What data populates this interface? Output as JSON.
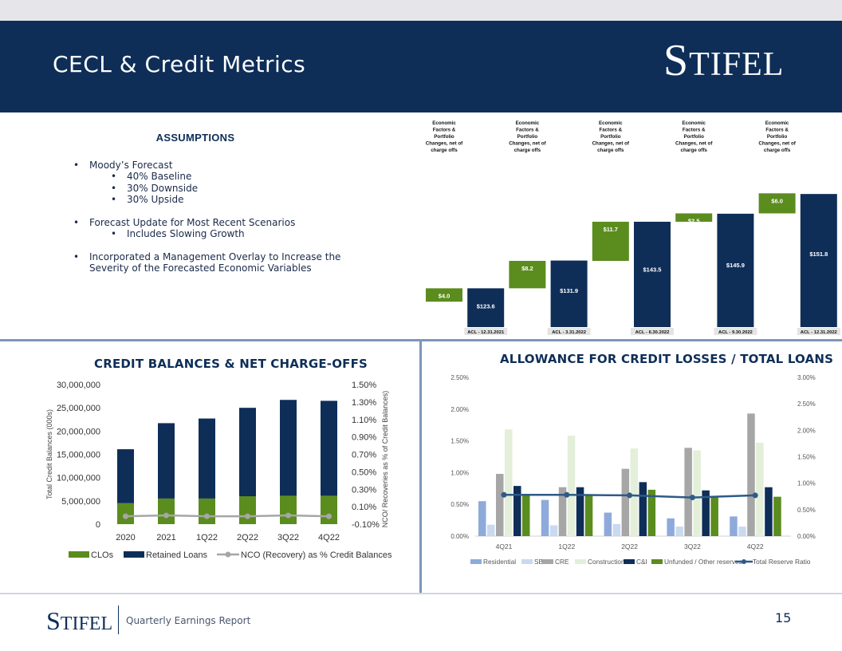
{
  "header": {
    "title": "CECL & Credit Metrics",
    "logo_first": "S",
    "logo_rest": "TIFEL"
  },
  "assumptions": {
    "heading": "ASSUMPTIONS",
    "b1": "Moody’s Forecast",
    "b1a": "40% Baseline",
    "b1b": "30% Downside",
    "b1c": "30% Upside",
    "b2": "Forecast Update for Most Recent Scenarios",
    "b2a": "Includes Slowing Growth",
    "b3_line1": "Incorporated a Management Overlay to Increase the",
    "b3_line2": "Severity of the Forecasted Economic Variables",
    "bullet_char": "•"
  },
  "chart_data": [
    {
      "type": "bar",
      "subtype": "waterfall",
      "column_header": [
        "Economic",
        "Factors &",
        "Portfolio",
        "Changes, net of",
        "charge offs"
      ],
      "periods": [
        "ACL - 12.31.2021",
        "ACL - 3.31.2022",
        "ACL - 6.30.2022",
        "ACL - 9.30.2022",
        "ACL - 12.31.2022"
      ],
      "totals": [
        123.6,
        131.9,
        143.5,
        145.9,
        151.8
      ],
      "total_labels": [
        "$123.6",
        "$131.9",
        "$143.5",
        "$145.9",
        "$151.8"
      ],
      "changes": [
        4.0,
        8.2,
        11.7,
        2.5,
        6.0
      ],
      "change_labels": [
        "$4.0",
        "$8.2",
        "$11.7",
        "$2.5",
        "$6.0"
      ],
      "colors": {
        "total": "#0e2e58",
        "change": "#5b8c1e"
      }
    },
    {
      "type": "bar",
      "title": "CREDIT BALANCES & NET CHARGE-OFFS",
      "categories": [
        "2020",
        "2021",
        "1Q22",
        "2Q22",
        "3Q22",
        "4Q22"
      ],
      "series": [
        {
          "name": "CLOs",
          "values": [
            4500000,
            5500000,
            5500000,
            6000000,
            6100000,
            6100000
          ],
          "color": "#5b8c1e"
        },
        {
          "name": "Retained Loans",
          "values": [
            11600000,
            16200000,
            17200000,
            19000000,
            20600000,
            20400000
          ],
          "color": "#0e2e58"
        },
        {
          "name": "NCO (Recovery) as % Credit Balances",
          "values": [
            -0.01,
            0.0,
            -0.01,
            -0.01,
            0.0,
            -0.01
          ],
          "color": "#a6a6a6",
          "axis": "right"
        }
      ],
      "ylabel": "Total Credit Balances (000s)",
      "y2label": "NCO/ Recoveries as % of Credit Balances)",
      "ylim": [
        0,
        30000000
      ],
      "y2lim": [
        -0.1,
        1.5
      ],
      "yticks": [
        "0",
        "5,000,000",
        "10,000,000",
        "15,000,000",
        "20,000,000",
        "25,000,000",
        "30,000,000"
      ],
      "y2ticks": [
        "-0.10%",
        "0.10%",
        "0.30%",
        "0.50%",
        "0.70%",
        "0.90%",
        "1.10%",
        "1.30%",
        "1.50%"
      ]
    },
    {
      "type": "bar",
      "title": "ALLOWANCE FOR CREDIT LOSSES / TOTAL LOANS",
      "categories": [
        "4Q21",
        "1Q22",
        "2Q22",
        "3Q22",
        "4Q22"
      ],
      "series": [
        {
          "name": "Residential",
          "values": [
            0.55,
            0.57,
            0.37,
            0.28,
            0.31
          ],
          "color": "#8eaadb"
        },
        {
          "name": "SBL",
          "values": [
            0.18,
            0.17,
            0.19,
            0.15,
            0.15
          ],
          "color": "#c9d9f0"
        },
        {
          "name": "CRE",
          "values": [
            0.98,
            0.77,
            1.06,
            1.39,
            1.93
          ],
          "color": "#a6a6a6"
        },
        {
          "name": "Construction",
          "values": [
            1.68,
            1.58,
            1.38,
            1.35,
            1.47
          ],
          "color": "#e3efd9"
        },
        {
          "name": "C&I",
          "values": [
            0.79,
            0.77,
            0.85,
            0.72,
            0.77
          ],
          "color": "#0e2e58"
        },
        {
          "name": "Unfunded / Other reserves*",
          "values": [
            0.66,
            0.66,
            0.73,
            0.62,
            0.62
          ],
          "color": "#5b8c1e"
        },
        {
          "name": "Total Reserve Ratio",
          "values": [
            0.78,
            0.78,
            0.77,
            0.73,
            0.77
          ],
          "color": "#2e5a87",
          "axis": "right"
        }
      ],
      "ylim": [
        0,
        2.5
      ],
      "y2lim": [
        0,
        3.0
      ],
      "yticks": [
        "0.00%",
        "0.50%",
        "1.00%",
        "1.50%",
        "2.00%",
        "2.50%"
      ],
      "y2ticks": [
        "0.00%",
        "0.50%",
        "1.00%",
        "1.50%",
        "2.00%",
        "2.50%",
        "3.00%"
      ]
    }
  ],
  "footer": {
    "logo_first": "S",
    "logo_rest": "TIFEL",
    "text": "Quarterly Earnings Report",
    "page": "15"
  }
}
